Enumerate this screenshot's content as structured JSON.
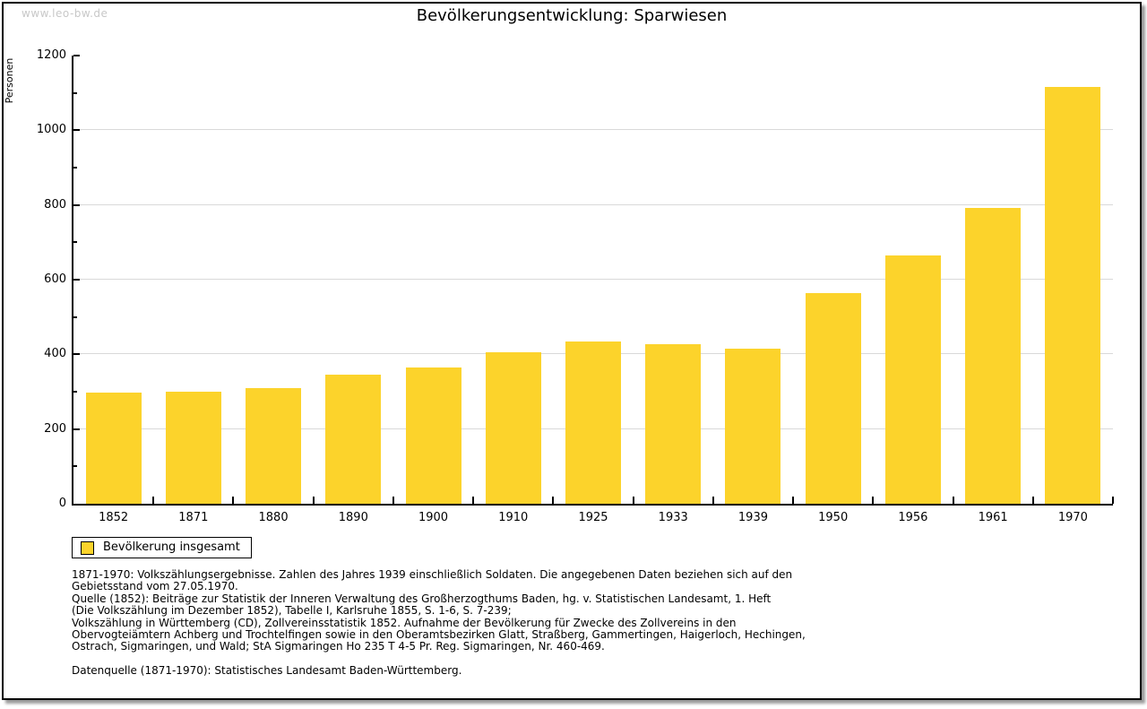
{
  "page": {
    "watermark": "www.leo-bw.de",
    "title": "Bevölkerungsentwicklung: Sparwiesen"
  },
  "colors": {
    "bar": "#FCD32B",
    "gridline": "#D9D9D9",
    "axis": "#000000",
    "watermark": "#C8C8C8",
    "background": "#FFFFFF"
  },
  "chart_data": {
    "type": "bar",
    "title": "Bevölkerungsentwicklung: Sparwiesen",
    "xlabel": "",
    "ylabel": "Personen",
    "ylim": [
      0,
      1200
    ],
    "ytick_step": 200,
    "ytick_minor_step": 100,
    "grid": "horizontal major gridlines every 200, light gray",
    "legend_position": "bottom-left",
    "series_name": "Bevölkerung insgesamt",
    "bar_color": "#FCD32B",
    "categories": [
      "1852",
      "1871",
      "1880",
      "1890",
      "1900",
      "1910",
      "1925",
      "1933",
      "1939",
      "1950",
      "1956",
      "1961",
      "1970"
    ],
    "values": [
      298,
      300,
      310,
      346,
      365,
      406,
      435,
      427,
      416,
      565,
      665,
      793,
      1116
    ]
  },
  "legend": {
    "label": "Bevölkerung insgesamt"
  },
  "footnotes": {
    "lines": [
      "1871-1970: Volkszählungsergebnisse. Zahlen des Jahres 1939 einschließlich Soldaten. Die angegebenen Daten beziehen sich auf den",
      "Gebietsstand vom 27.05.1970.",
      "Quelle (1852): Beiträge zur Statistik der Inneren Verwaltung des Großherzogthums Baden, hg. v. Statistischen Landesamt, 1. Heft",
      "(Die Volkszählung im Dezember 1852), Tabelle I, Karlsruhe 1855, S. 1-6, S. 7-239;",
      "Volkszählung in Württemberg (CD), Zollvereinsstatistik 1852. Aufnahme der Bevölkerung für Zwecke des Zollvereins in den",
      "Obervogteiämtern Achberg und Trochtelfingen sowie in den Oberamtsbezirken Glatt, Straßberg, Gammertingen, Haigerloch, Hechingen,",
      "Ostrach, Sigmaringen, und Wald; StA Sigmaringen Ho 235 T 4-5 Pr. Reg. Sigmaringen, Nr. 460-469."
    ],
    "datasource": "Datenquelle (1871-1970): Statistisches Landesamt Baden-Württemberg."
  }
}
